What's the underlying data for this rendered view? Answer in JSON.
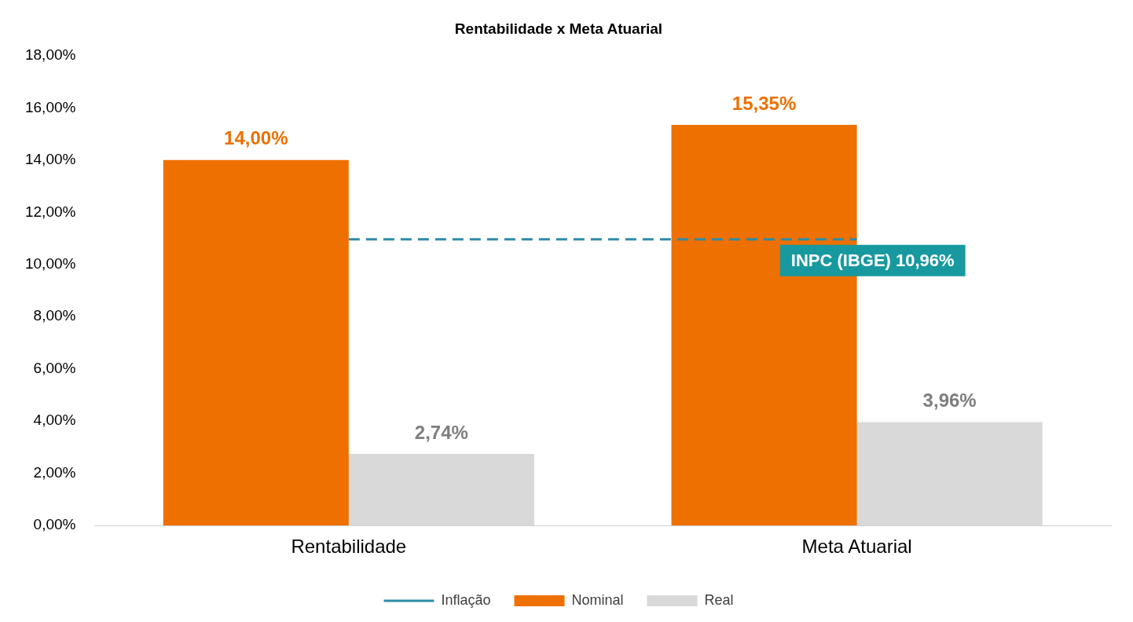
{
  "chart_data": {
    "type": "bar",
    "title": "Rentabilidade x Meta Atuarial",
    "categories": [
      "Rentabilidade",
      "Meta Atuarial"
    ],
    "series": [
      {
        "name": "Nominal",
        "color": "#ed7000",
        "values": [
          14.0,
          15.35
        ],
        "value_labels": [
          "14,00%",
          "15,35%"
        ]
      },
      {
        "name": "Real",
        "color": "#d9d9d9",
        "values": [
          2.74,
          3.96
        ],
        "value_labels": [
          "2,74%",
          "3,96%"
        ]
      },
      {
        "name": "Inflação",
        "type": "line",
        "color": "#2e8ca6",
        "values": [
          10.96,
          10.96
        ]
      }
    ],
    "annotations": [
      {
        "text": "INPC (IBGE) 10,96%",
        "x": "Meta Atuarial",
        "y": 10.96
      }
    ],
    "ylim": [
      0,
      18
    ],
    "yticks": [
      {
        "value": 0,
        "label": "0,00%"
      },
      {
        "value": 2,
        "label": "2,00%"
      },
      {
        "value": 4,
        "label": "4,00%"
      },
      {
        "value": 6,
        "label": "6,00%"
      },
      {
        "value": 8,
        "label": "8,00%"
      },
      {
        "value": 10,
        "label": "10,00%"
      },
      {
        "value": 12,
        "label": "12,00%"
      },
      {
        "value": 14,
        "label": "14,00%"
      },
      {
        "value": 16,
        "label": "16,00%"
      },
      {
        "value": 18,
        "label": "18,00%"
      }
    ],
    "grid": false,
    "legend": "bottom",
    "line_style": "dashed",
    "marker": "none"
  }
}
